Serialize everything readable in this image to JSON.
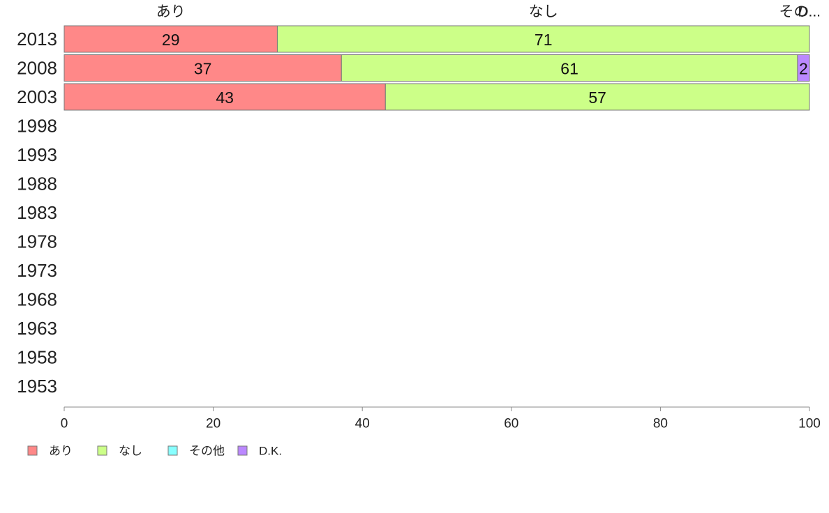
{
  "chart_data": {
    "type": "bar",
    "orientation": "horizontal",
    "stacked": true,
    "categories": [
      "2013",
      "2008",
      "2003",
      "1998",
      "1993",
      "1988",
      "1983",
      "1978",
      "1973",
      "1968",
      "1963",
      "1958",
      "1953"
    ],
    "series": [
      {
        "name": "あり",
        "color": "#ff8888",
        "values": [
          28.6,
          37.2,
          43.1,
          null,
          null,
          null,
          null,
          null,
          null,
          null,
          null,
          null,
          null
        ],
        "labels": [
          "29",
          "37",
          "43",
          "",
          "",
          "",
          "",
          "",
          "",
          "",
          "",
          "",
          ""
        ]
      },
      {
        "name": "なし",
        "color": "#ccff88",
        "values": [
          71.4,
          61.2,
          56.9,
          null,
          null,
          null,
          null,
          null,
          null,
          null,
          null,
          null,
          null
        ],
        "labels": [
          "71",
          "61",
          "57",
          "",
          "",
          "",
          "",
          "",
          "",
          "",
          "",
          "",
          ""
        ]
      },
      {
        "name": "その他",
        "color": "#88ffff",
        "values": [
          0,
          0,
          0,
          null,
          null,
          null,
          null,
          null,
          null,
          null,
          null,
          null,
          null
        ],
        "labels": [
          "",
          "",
          "",
          "",
          "",
          "",
          "",
          "",
          "",
          "",
          "",
          "",
          ""
        ]
      },
      {
        "name": "D.K.",
        "color": "#bb88ff",
        "values": [
          0,
          1.6,
          0,
          null,
          null,
          null,
          null,
          null,
          null,
          null,
          null,
          null,
          null
        ],
        "labels": [
          "",
          "2",
          "",
          "",
          "",
          "",
          "",
          "",
          "",
          "",
          "",
          "",
          ""
        ]
      }
    ],
    "top_labels": [
      "あり",
      "なし",
      "その...",
      "D..."
    ],
    "xlim": [
      0,
      100
    ],
    "xticks": [
      0,
      20,
      40,
      60,
      80,
      100
    ],
    "grid": false,
    "legend_position": "bottom-left",
    "title": "",
    "xlabel": "",
    "ylabel": ""
  }
}
